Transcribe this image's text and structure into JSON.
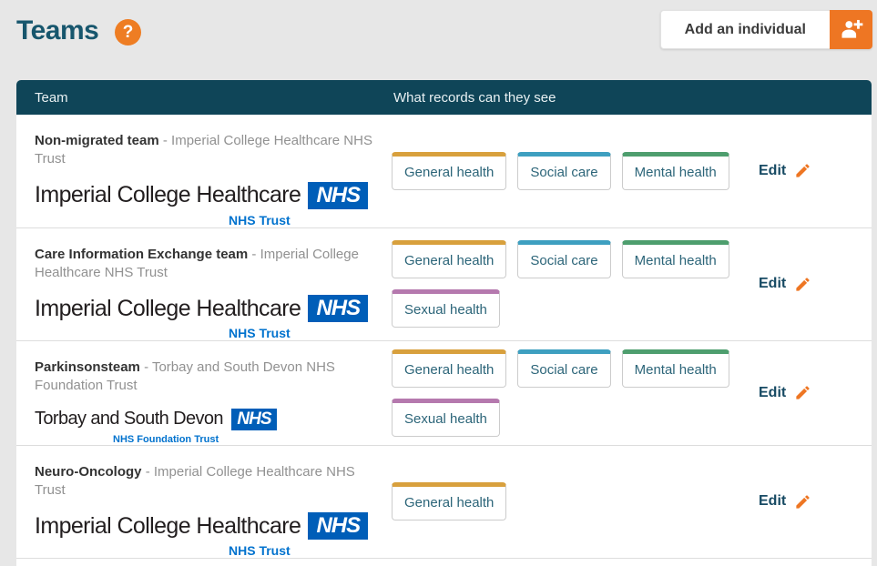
{
  "page": {
    "title": "Teams"
  },
  "topbar": {
    "add_button": {
      "label": "Add an individual",
      "icon": "add-person-icon"
    },
    "help_icon": {
      "glyph": "?",
      "color": "#ee7d23"
    }
  },
  "table": {
    "columns": {
      "team": "Team",
      "records": "What records can they see"
    },
    "header_color": "#0f4558",
    "rows": [
      {
        "team_name": "Non-migrated team",
        "separator": "-",
        "trust": "Imperial College Healthcare NHS Trust",
        "logo": {
          "org": "Imperial College Healthcare",
          "nhs": "NHS",
          "sub": "NHS Trust"
        },
        "tags": [
          {
            "label": "General health",
            "color": "#d8a03d"
          },
          {
            "label": "Social care",
            "color": "#3e9fc0"
          },
          {
            "label": "Mental health",
            "color": "#4e9e6e"
          }
        ],
        "edit_label": "Edit"
      },
      {
        "team_name": "Care Information Exchange team",
        "separator": "-",
        "trust": "Imperial College Healthcare NHS Trust",
        "logo": {
          "org": "Imperial College Healthcare",
          "nhs": "NHS",
          "sub": "NHS Trust"
        },
        "tags": [
          {
            "label": "General health",
            "color": "#d8a03d"
          },
          {
            "label": "Social care",
            "color": "#3e9fc0"
          },
          {
            "label": "Mental health",
            "color": "#4e9e6e"
          },
          {
            "label": "Sexual health",
            "color": "#b579ae"
          }
        ],
        "edit_label": "Edit"
      },
      {
        "team_name": "Parkinsonsteam",
        "separator": "-",
        "trust": "Torbay and South Devon NHS Foundation Trust",
        "logo": {
          "org": "Torbay and South Devon",
          "nhs": "NHS",
          "sub": "NHS Foundation Trust"
        },
        "tags": [
          {
            "label": "General health",
            "color": "#d8a03d"
          },
          {
            "label": "Social care",
            "color": "#3e9fc0"
          },
          {
            "label": "Mental health",
            "color": "#4e9e6e"
          },
          {
            "label": "Sexual health",
            "color": "#b579ae"
          }
        ],
        "edit_label": "Edit"
      },
      {
        "team_name": "Neuro-Oncology",
        "separator": "-",
        "trust": "Imperial College Healthcare NHS Trust",
        "logo": {
          "org": "Imperial College Healthcare",
          "nhs": "NHS",
          "sub": "NHS Trust"
        },
        "tags": [
          {
            "label": "General health",
            "color": "#d8a03d"
          }
        ],
        "edit_label": "Edit"
      }
    ]
  }
}
